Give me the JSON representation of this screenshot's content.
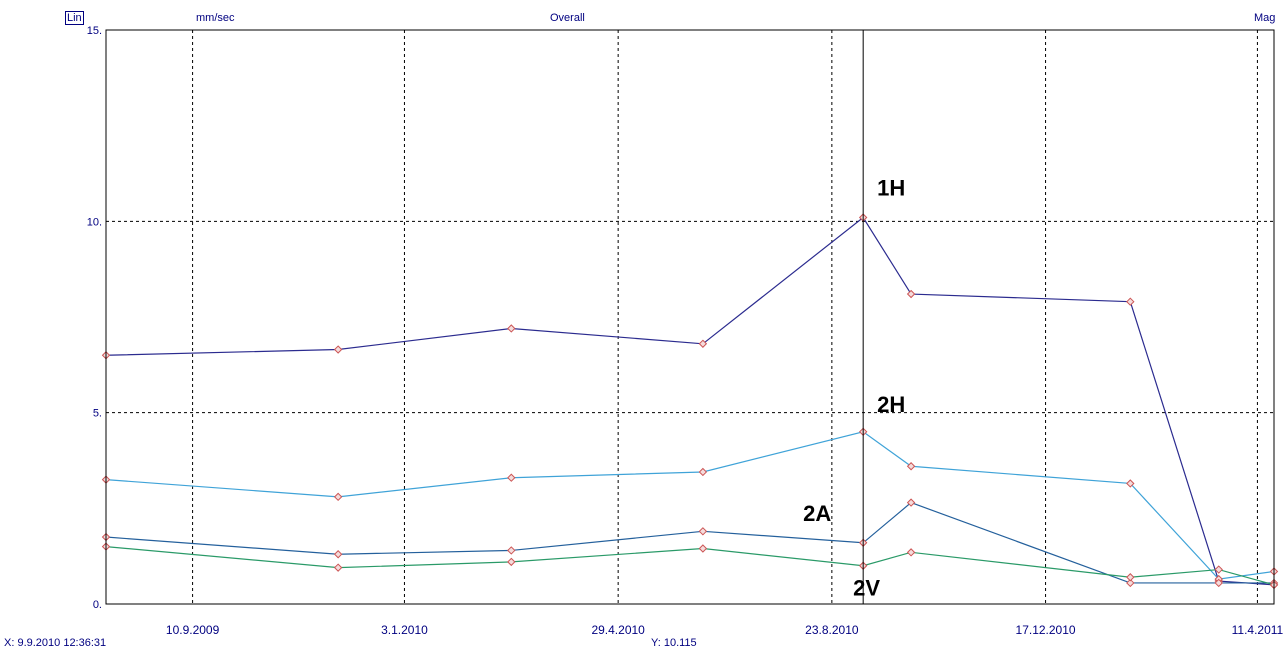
{
  "header": {
    "scale_mode": "Lin",
    "units": "mm/sec",
    "title": "Overall",
    "display_mode": "Mag"
  },
  "status": {
    "x_readout": "X: 9.9.2010 12:36:31",
    "y_readout": "Y: 10.115"
  },
  "colors": {
    "1H": "#2b2b8f",
    "2H": "#3fa3d8",
    "2A": "#24609c",
    "2V": "#2a9a68",
    "marker": "#cc5555",
    "axis": "#000000",
    "text": "#000080"
  },
  "chart_data": {
    "type": "line",
    "title": "Overall",
    "ylabel": "mm/sec",
    "xlabel": "",
    "ylim": [
      0,
      15
    ],
    "y_ticks": [
      "0.",
      "5.",
      "10.",
      "15."
    ],
    "y_tick_values": [
      0,
      5,
      10,
      15
    ],
    "x_tick_labels": [
      "10.9.2009",
      "3.1.2010",
      "29.4.2010",
      "23.8.2010",
      "17.12.2010",
      "11.4.2011"
    ],
    "x_tick_dates": [
      "2009-09-10",
      "2010-01-03",
      "2010-04-29",
      "2010-08-23",
      "2010-12-17",
      "2011-04-11"
    ],
    "xlim": [
      "2009-07-25",
      "2011-04-20"
    ],
    "grid": true,
    "cursor": {
      "x": "2010-09-09",
      "y": 10.115
    },
    "series": [
      {
        "name": "1H",
        "x": [
          "2009-07-25",
          "2009-11-28",
          "2010-03-02",
          "2010-06-14",
          "2010-09-09",
          "2010-10-05",
          "2011-02-01",
          "2011-03-21",
          "2011-04-20"
        ],
        "values": [
          6.5,
          6.65,
          7.2,
          6.8,
          10.1,
          8.1,
          7.9,
          0.6,
          0.5
        ]
      },
      {
        "name": "2H",
        "x": [
          "2009-07-25",
          "2009-11-28",
          "2010-03-02",
          "2010-06-14",
          "2010-09-09",
          "2010-10-05",
          "2011-02-01",
          "2011-03-21",
          "2011-04-20"
        ],
        "values": [
          3.25,
          2.8,
          3.3,
          3.45,
          4.5,
          3.6,
          3.15,
          0.65,
          0.85
        ]
      },
      {
        "name": "2A",
        "x": [
          "2009-07-25",
          "2009-11-28",
          "2010-03-02",
          "2010-06-14",
          "2010-09-09",
          "2010-10-05",
          "2011-02-01",
          "2011-03-21",
          "2011-04-20"
        ],
        "values": [
          1.75,
          1.3,
          1.4,
          1.9,
          1.6,
          2.65,
          0.55,
          0.55,
          0.55
        ]
      },
      {
        "name": "2V",
        "x": [
          "2009-07-25",
          "2009-11-28",
          "2010-03-02",
          "2010-06-14",
          "2010-09-09",
          "2010-10-05",
          "2011-02-01",
          "2011-03-21",
          "2011-04-20"
        ],
        "values": [
          1.5,
          0.95,
          1.1,
          1.45,
          1.0,
          1.35,
          0.7,
          0.9,
          0.5
        ]
      }
    ]
  }
}
